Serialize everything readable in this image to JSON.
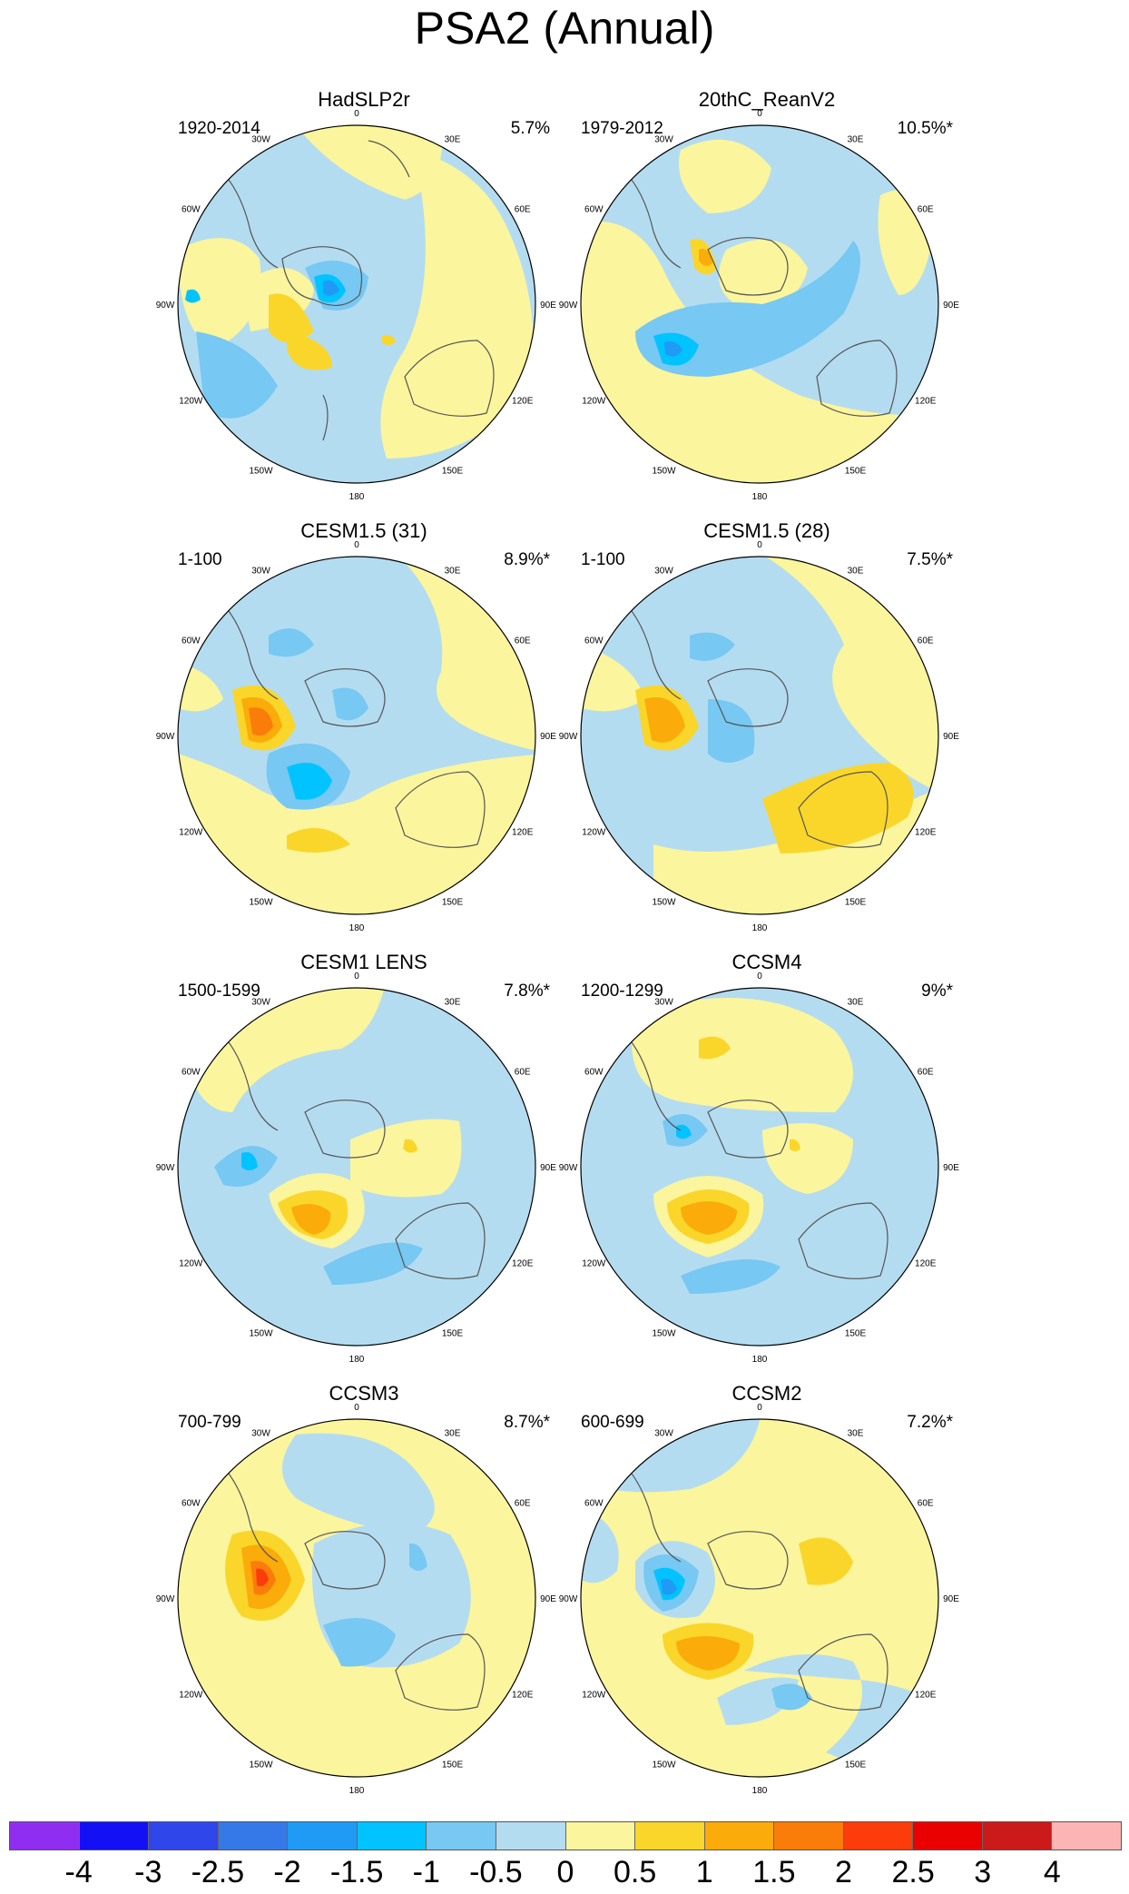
{
  "title": "PSA2 (Annual)",
  "longitude_labels": [
    "0",
    "30E",
    "60E",
    "90E",
    "120E",
    "150E",
    "180",
    "150W",
    "120W",
    "90W",
    "60W",
    "30W"
  ],
  "colors": {
    "neg_4": "#8f2ef0",
    "neg_3": "#1410f5",
    "neg_2_5": "#2f46ea",
    "neg_2": "#3579e8",
    "neg_1_5": "#1f9bf5",
    "neg_1": "#00c3ff",
    "neg_0_5": "#77c8f2",
    "zero_neg": "#b4dcf0",
    "zero_pos": "#fbf59d",
    "pos_0_5": "#fad62a",
    "pos_1": "#fbab0a",
    "pos_1_5": "#fa7d09",
    "pos_2": "#fd3c0b",
    "pos_2_5": "#ea0000",
    "pos_3": "#cc1a1a",
    "pos_4": "#fdb4b4",
    "land_outline": "#555555"
  },
  "panels": [
    {
      "title": "HadSLP2r",
      "years": "1920-2014",
      "percent": "5.7%"
    },
    {
      "title": "20thC_ReanV2",
      "years": "1979-2012",
      "percent": "10.5%*"
    },
    {
      "title": "CESM1.5 (31)",
      "years": "1-100",
      "percent": "8.9%*"
    },
    {
      "title": "CESM1.5 (28)",
      "years": "1-100",
      "percent": "7.5%*"
    },
    {
      "title": "CESM1 LENS",
      "years": "1500-1599",
      "percent": "7.8%*"
    },
    {
      "title": "CCSM4",
      "years": "1200-1299",
      "percent": "9%*"
    },
    {
      "title": "CCSM3",
      "years": "700-799",
      "percent": "8.7%*"
    },
    {
      "title": "CCSM2",
      "years": "600-699",
      "percent": "7.2%*"
    }
  ],
  "colorbar": {
    "labels": [
      "-4",
      "-3",
      "-2.5",
      "-2",
      "-1.5",
      "-1",
      "-0.5",
      "0",
      "0.5",
      "1",
      "1.5",
      "2",
      "2.5",
      "3",
      "4"
    ],
    "colors": [
      "#8f2ef0",
      "#1410f5",
      "#2f46ea",
      "#3579e8",
      "#1f9bf5",
      "#00c3ff",
      "#77c8f2",
      "#b4dcf0",
      "#fbf59d",
      "#fad62a",
      "#fbab0a",
      "#fa7d09",
      "#fd3c0b",
      "#ea0000",
      "#cc1a1a",
      "#fdb4b4"
    ]
  }
}
